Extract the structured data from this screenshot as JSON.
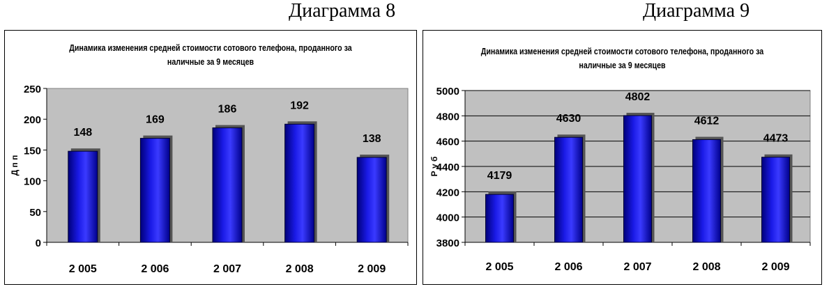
{
  "captions": {
    "left": "Диаграмма 8",
    "right": "Диаграмма 9"
  },
  "chart_data": [
    {
      "type": "bar",
      "title_line1": "Динамика изменения средней стоимости сотового телефона, проданного за",
      "title_line2": "наличные за 9 месяцев",
      "ylabel": "Д п п",
      "categories": [
        "2 005",
        "2 006",
        "2 007",
        "2 008",
        "2 009"
      ],
      "values": [
        148,
        169,
        186,
        192,
        138
      ],
      "ylim": [
        0,
        250
      ],
      "yticks": [
        0,
        50,
        100,
        150,
        200,
        250
      ],
      "grid": false,
      "bar_color": "#1a1ae6",
      "plot_bg": "#c0c0c0"
    },
    {
      "type": "bar",
      "title_line1": "Динамика изменения средней стоимости сотового телефона, проданного за",
      "title_line2": "наличные за 9 месяцев",
      "ylabel": "Р у б",
      "categories": [
        "2 005",
        "2 006",
        "2 007",
        "2 008",
        "2 009"
      ],
      "values": [
        4179,
        4630,
        4802,
        4612,
        4473
      ],
      "ylim": [
        3800,
        5000
      ],
      "yticks": [
        3800,
        4000,
        4200,
        4400,
        4600,
        4800,
        5000
      ],
      "grid": true,
      "bar_color": "#1a1ae6",
      "plot_bg": "#c0c0c0"
    }
  ]
}
